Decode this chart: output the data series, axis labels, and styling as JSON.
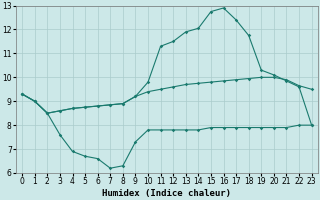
{
  "xlabel": "Humidex (Indice chaleur)",
  "background_color": "#cce8e8",
  "grid_color": "#aacccc",
  "line_color": "#1a7a6e",
  "xlim": [
    -0.5,
    23.5
  ],
  "ylim": [
    6,
    13
  ],
  "xticks": [
    0,
    1,
    2,
    3,
    4,
    5,
    6,
    7,
    8,
    9,
    10,
    11,
    12,
    13,
    14,
    15,
    16,
    17,
    18,
    19,
    20,
    21,
    22,
    23
  ],
  "yticks": [
    6,
    7,
    8,
    9,
    10,
    11,
    12,
    13
  ],
  "curve1_x": [
    0,
    1,
    2,
    3,
    4,
    5,
    6,
    7,
    8,
    9,
    10,
    11,
    12,
    13,
    14,
    15,
    16,
    17,
    18,
    19,
    20,
    21,
    22,
    23
  ],
  "curve1_y": [
    9.3,
    9.0,
    8.5,
    7.6,
    6.9,
    6.7,
    6.6,
    6.2,
    6.3,
    7.3,
    7.8,
    7.8,
    7.8,
    7.8,
    7.8,
    7.9,
    7.9,
    7.9,
    7.9,
    7.9,
    7.9,
    7.9,
    8.0,
    8.0
  ],
  "curve2_x": [
    0,
    1,
    2,
    3,
    4,
    5,
    6,
    7,
    8,
    9,
    10,
    11,
    12,
    13,
    14,
    15,
    16,
    17,
    18,
    19,
    20,
    21,
    22,
    23
  ],
  "curve2_y": [
    9.3,
    9.0,
    8.5,
    8.6,
    8.7,
    8.75,
    8.8,
    8.85,
    8.9,
    9.2,
    9.4,
    9.5,
    9.6,
    9.7,
    9.75,
    9.8,
    9.85,
    9.9,
    9.95,
    10.0,
    10.0,
    9.9,
    9.65,
    9.5
  ],
  "curve3_x": [
    0,
    1,
    2,
    3,
    4,
    5,
    6,
    7,
    8,
    9,
    10,
    11,
    12,
    13,
    14,
    15,
    16,
    17,
    18,
    19,
    20,
    21,
    22,
    23
  ],
  "curve3_y": [
    9.3,
    9.0,
    8.5,
    8.6,
    8.7,
    8.75,
    8.8,
    8.85,
    8.9,
    9.2,
    9.8,
    11.3,
    11.5,
    11.9,
    12.05,
    12.75,
    12.9,
    12.4,
    11.75,
    10.3,
    10.1,
    9.85,
    9.6,
    8.0
  ],
  "fontsize_label": 6.5,
  "fontsize_tick": 5.5
}
